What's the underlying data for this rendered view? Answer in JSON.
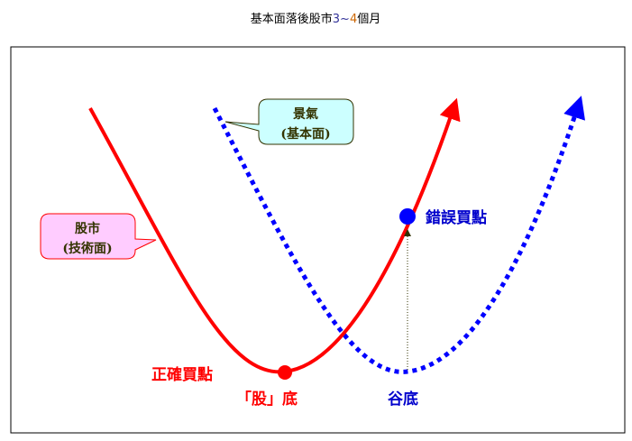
{
  "title": {
    "part1": "基本面落後股市",
    "part2": "3~",
    "part3": "4",
    "part4": "個月"
  },
  "callouts": {
    "fundamental": {
      "line1": "景氣",
      "line2": "(基本面)",
      "fill": "#ccffff"
    },
    "stock": {
      "line1": "股市",
      "line2": "(技術面)",
      "fill": "#ffccff"
    }
  },
  "labels": {
    "correct_buy": "正確買點",
    "stock_bottom": "「股」底",
    "wrong_buy": "錯誤買點",
    "valley_bottom": "谷底"
  },
  "colors": {
    "stock_curve": "#ff0000",
    "economy_curve": "#0000ff",
    "text_dark": "#333300"
  }
}
